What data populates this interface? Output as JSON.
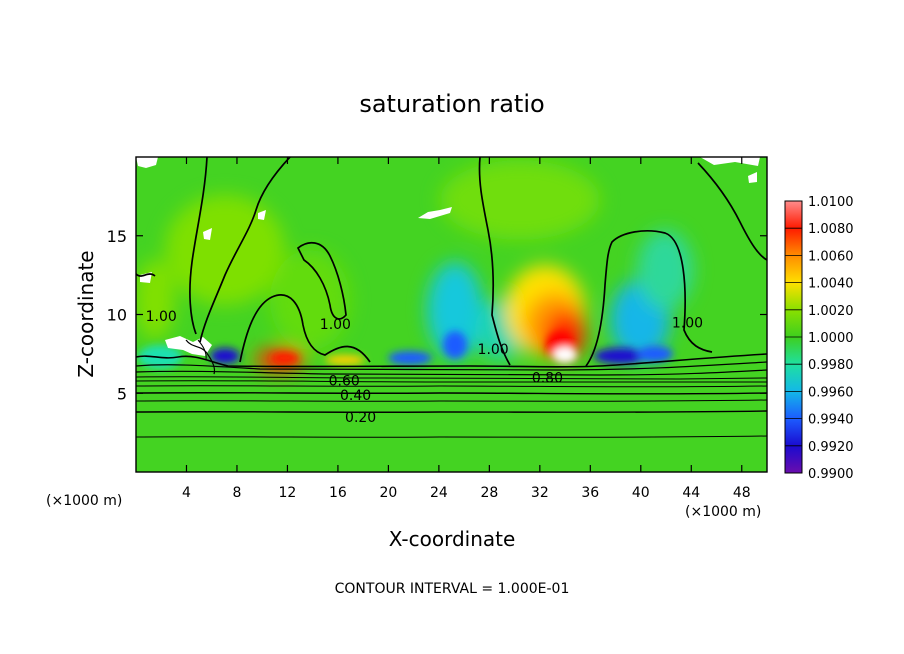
{
  "chart_data": {
    "type": "heatmap",
    "title": "saturation ratio",
    "xlabel": "X-coordinate",
    "ylabel": "Z-coordinate",
    "x_unit_left": "(×1000 m)",
    "x_unit_right": "(×1000 m)",
    "xlim": [
      0,
      50
    ],
    "ylim": [
      0,
      20
    ],
    "xticks": [
      4,
      8,
      12,
      16,
      20,
      24,
      28,
      32,
      36,
      40,
      44,
      48
    ],
    "xtick_labels": [
      "4",
      "8",
      "12",
      "16",
      "20",
      "24",
      "28",
      "32",
      "36",
      "40",
      "44",
      "48"
    ],
    "yticks": [
      5,
      10,
      15
    ],
    "ytick_labels": [
      "5",
      "10",
      "15"
    ],
    "colorbar": {
      "min": 0.99,
      "max": 1.01,
      "ticks": [
        1.01,
        1.008,
        1.006,
        1.004,
        1.002,
        1.0,
        0.998,
        0.996,
        0.994,
        0.992,
        0.99
      ],
      "tick_labels": [
        "1.0100",
        "1.0080",
        "1.0060",
        "1.0040",
        "1.0020",
        "1.0000",
        "0.9980",
        "0.9960",
        "0.9940",
        "0.9920",
        "0.9900"
      ],
      "colors": [
        "#6a0dad",
        "#1a0bd0",
        "#1c5cff",
        "#13b8e8",
        "#1fe0a0",
        "#3ecf1e",
        "#8ae000",
        "#ffe000",
        "#ff8c00",
        "#ff1a00",
        "#ff8c8c"
      ]
    },
    "contour_labels": [
      {
        "text": "1.00",
        "x": 2.0,
        "y": 9.9
      },
      {
        "text": "1.00",
        "x": 15.8,
        "y": 9.4
      },
      {
        "text": "1.00",
        "x": 28.3,
        "y": 7.8
      },
      {
        "text": "1.00",
        "x": 43.7,
        "y": 9.5
      },
      {
        "text": "0.60",
        "x": 16.5,
        "y": 5.8
      },
      {
        "text": "0.40",
        "x": 17.4,
        "y": 4.9
      },
      {
        "text": "0.20",
        "x": 17.8,
        "y": 3.5
      },
      {
        "text": "0.80",
        "x": 32.6,
        "y": 6.0
      }
    ],
    "footer_note": "CONTOUR INTERVAL = 1.000E-01"
  }
}
